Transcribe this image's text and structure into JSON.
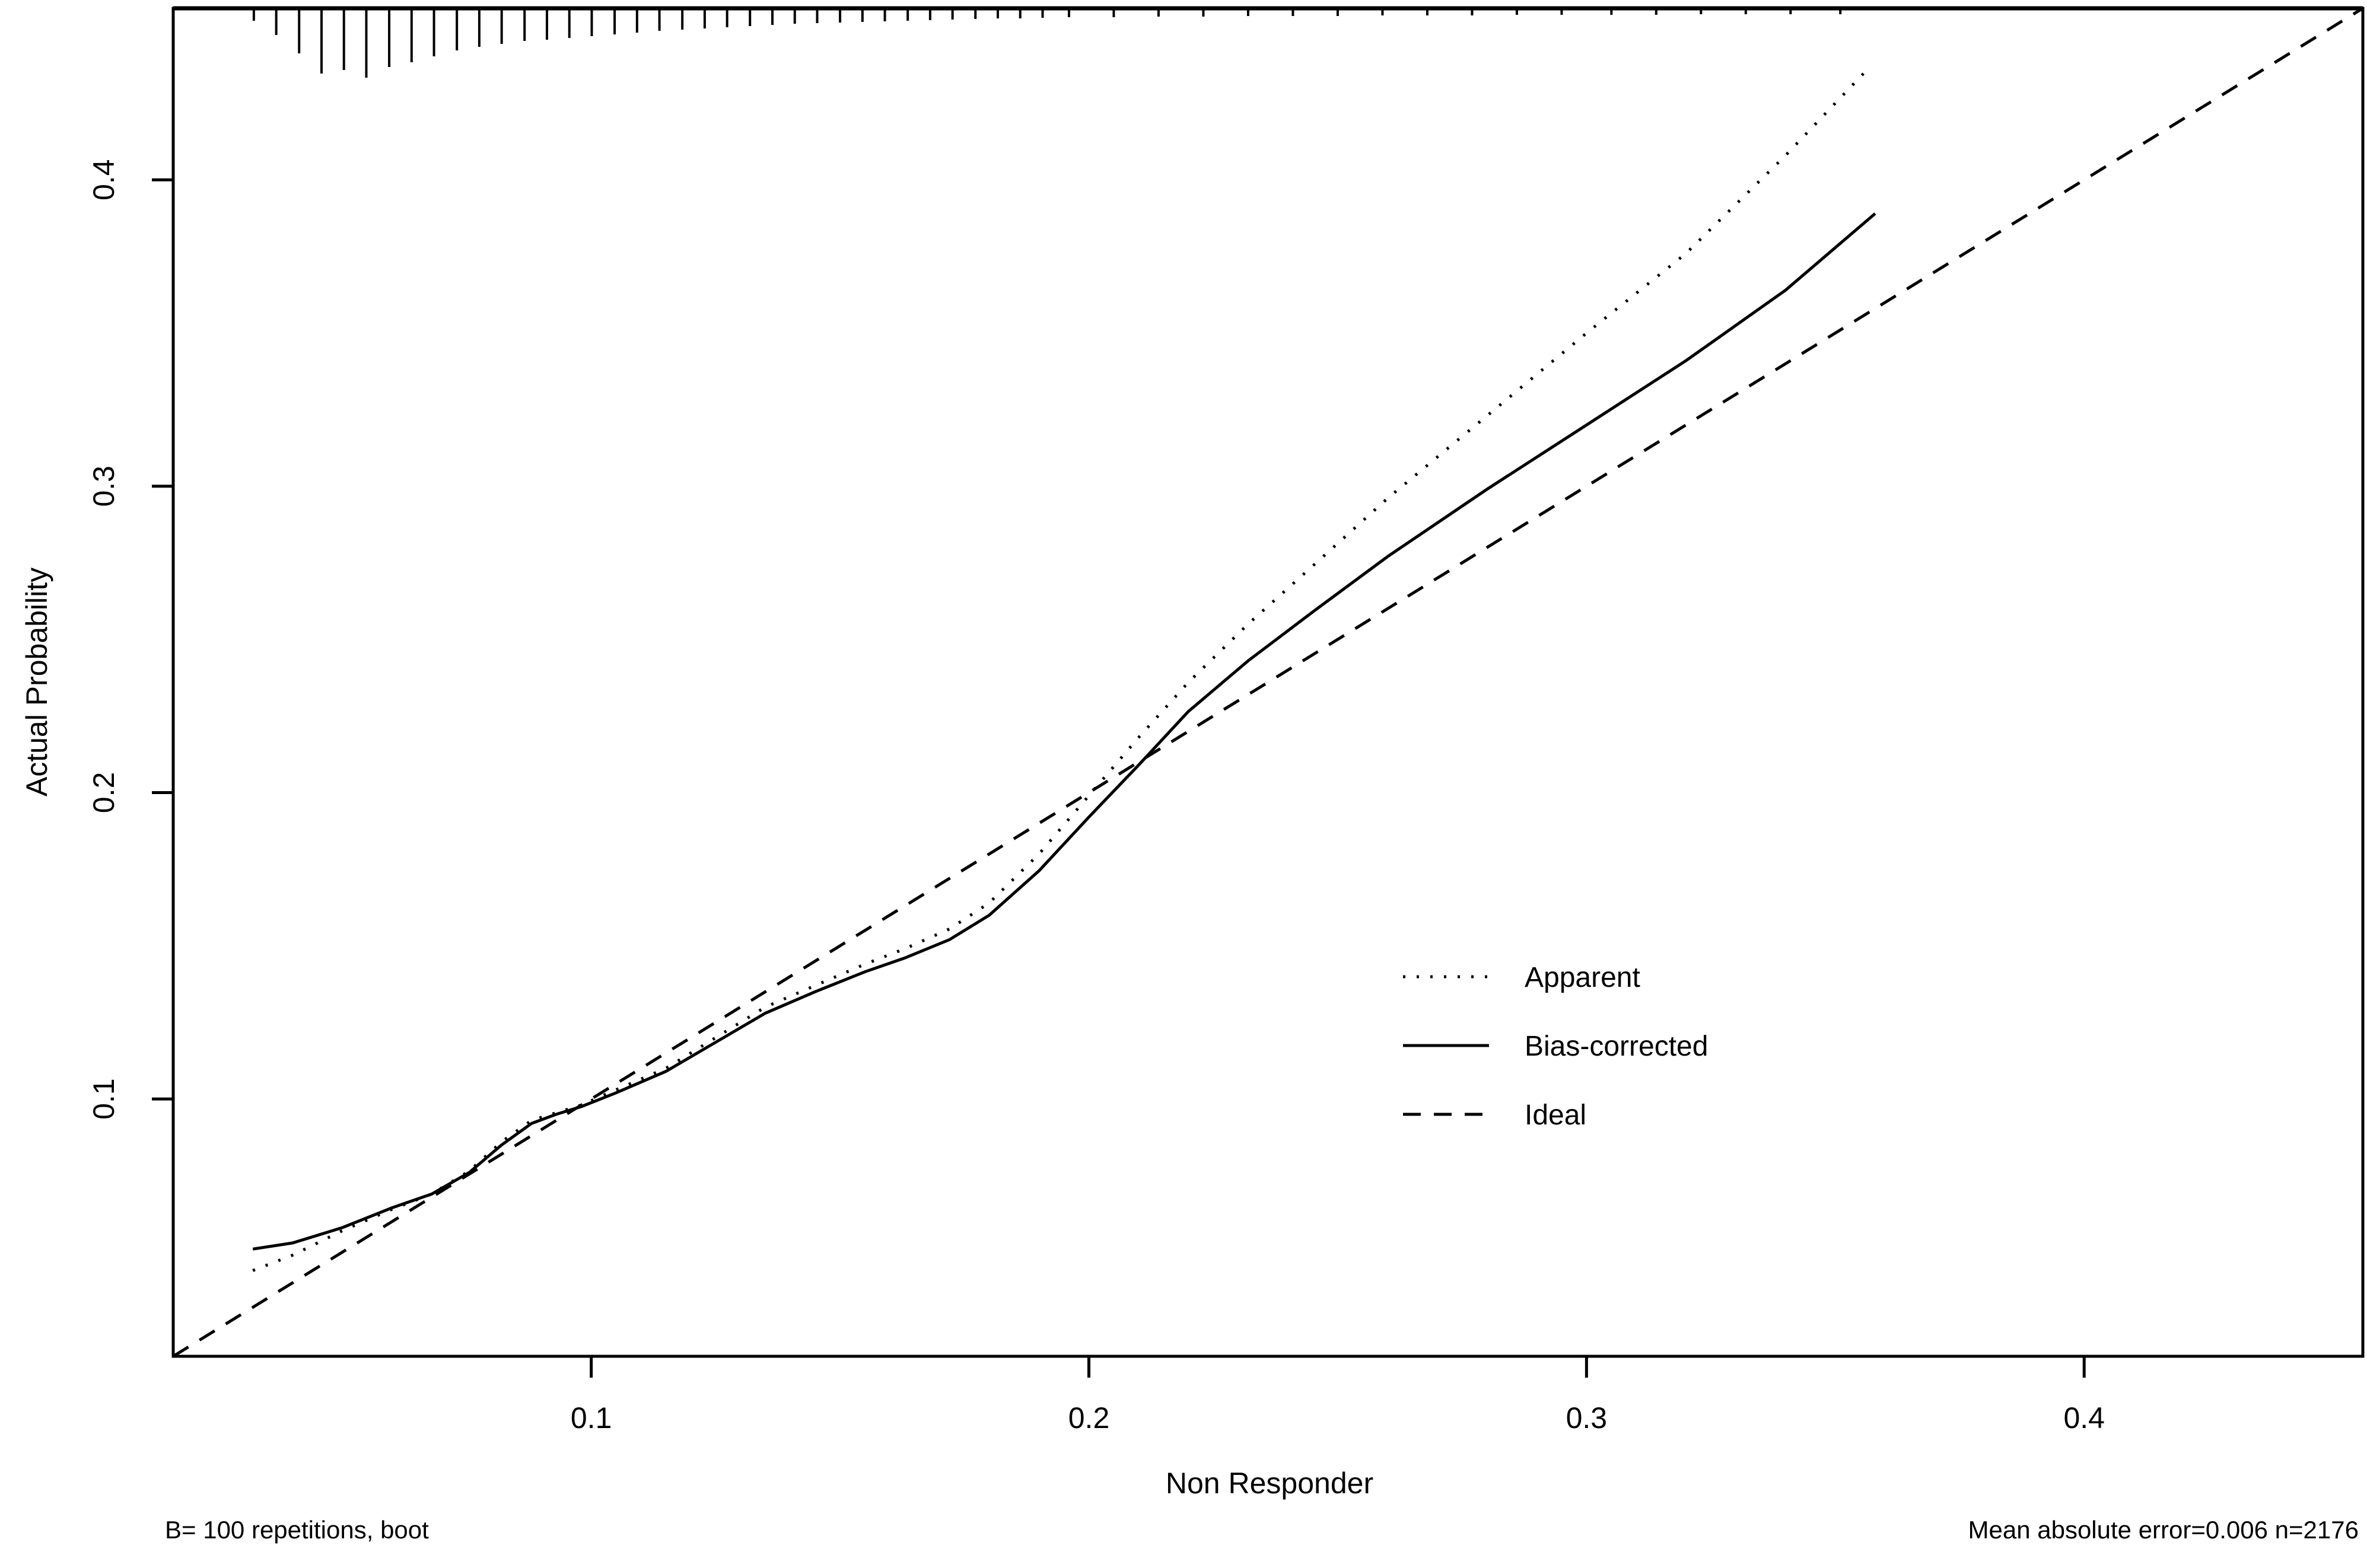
{
  "chart_data": {
    "type": "line",
    "title": "",
    "xlabel": "Non Responder",
    "ylabel": "Actual Probability",
    "xlim": [
      0.016,
      0.456
    ],
    "ylim": [
      0.016,
      0.456
    ],
    "grid": false,
    "x_ticks": [
      {
        "v": 0.1,
        "label": "0.1"
      },
      {
        "v": 0.2,
        "label": "0.2"
      },
      {
        "v": 0.3,
        "label": "0.3"
      },
      {
        "v": 0.4,
        "label": "0.4"
      }
    ],
    "y_ticks": [
      {
        "v": 0.1,
        "label": "0.1"
      },
      {
        "v": 0.2,
        "label": "0.2"
      },
      {
        "v": 0.3,
        "label": "0.3"
      },
      {
        "v": 0.4,
        "label": "0.4"
      }
    ],
    "line_color": "#000000",
    "series": [
      {
        "name": "Apparent",
        "line_style": "dotted",
        "points": [
          [
            0.032,
            0.044
          ],
          [
            0.04,
            0.049
          ],
          [
            0.05,
            0.057
          ],
          [
            0.06,
            0.064
          ],
          [
            0.068,
            0.069
          ],
          [
            0.0755,
            0.0765
          ],
          [
            0.082,
            0.086
          ],
          [
            0.088,
            0.093
          ],
          [
            0.093,
            0.0955
          ],
          [
            0.098,
            0.098
          ],
          [
            0.105,
            0.103
          ],
          [
            0.115,
            0.11
          ],
          [
            0.125,
            0.12
          ],
          [
            0.135,
            0.13
          ],
          [
            0.145,
            0.137
          ],
          [
            0.155,
            0.144
          ],
          [
            0.163,
            0.149
          ],
          [
            0.172,
            0.1555
          ],
          [
            0.18,
            0.164
          ],
          [
            0.19,
            0.18
          ],
          [
            0.2,
            0.199
          ],
          [
            0.21,
            0.218
          ],
          [
            0.22,
            0.236
          ],
          [
            0.232,
            0.255
          ],
          [
            0.245,
            0.274
          ],
          [
            0.26,
            0.296
          ],
          [
            0.28,
            0.323
          ],
          [
            0.3,
            0.35
          ],
          [
            0.32,
            0.376
          ],
          [
            0.34,
            0.408
          ],
          [
            0.357,
            0.437
          ]
        ]
      },
      {
        "name": "Bias-corrected",
        "line_style": "solid",
        "points": [
          [
            0.032,
            0.051
          ],
          [
            0.04,
            0.053
          ],
          [
            0.05,
            0.058
          ],
          [
            0.06,
            0.0645
          ],
          [
            0.068,
            0.069
          ],
          [
            0.0755,
            0.076
          ],
          [
            0.082,
            0.085
          ],
          [
            0.088,
            0.092
          ],
          [
            0.093,
            0.095
          ],
          [
            0.098,
            0.0975
          ],
          [
            0.105,
            0.102
          ],
          [
            0.115,
            0.109
          ],
          [
            0.125,
            0.1185
          ],
          [
            0.135,
            0.128
          ],
          [
            0.145,
            0.135
          ],
          [
            0.155,
            0.1415
          ],
          [
            0.163,
            0.146
          ],
          [
            0.172,
            0.152
          ],
          [
            0.18,
            0.16
          ],
          [
            0.19,
            0.1745
          ],
          [
            0.2,
            0.192
          ],
          [
            0.21,
            0.209
          ],
          [
            0.22,
            0.2265
          ],
          [
            0.232,
            0.243
          ],
          [
            0.245,
            0.259
          ],
          [
            0.26,
            0.277
          ],
          [
            0.28,
            0.299
          ],
          [
            0.3,
            0.32
          ],
          [
            0.32,
            0.341
          ],
          [
            0.34,
            0.364
          ],
          [
            0.358,
            0.389
          ]
        ]
      },
      {
        "name": "Ideal",
        "line_style": "dashed",
        "points": [
          [
            0.016,
            0.016
          ],
          [
            0.456,
            0.456
          ]
        ]
      }
    ],
    "legend": {
      "position": "right-center",
      "items": [
        "Apparent",
        "Bias-corrected",
        "Ideal"
      ]
    },
    "rug": {
      "comment_semantic": "spike histogram of predicted probabilities along top axis",
      "spikes": [
        [
          0.0322,
          18
        ],
        [
          0.0367,
          42
        ],
        [
          0.0413,
          73
        ],
        [
          0.0458,
          107
        ],
        [
          0.0503,
          101
        ],
        [
          0.0548,
          114
        ],
        [
          0.0594,
          96
        ],
        [
          0.0639,
          88
        ],
        [
          0.0684,
          78
        ],
        [
          0.073,
          68
        ],
        [
          0.0775,
          62
        ],
        [
          0.082,
          57
        ],
        [
          0.0866,
          52
        ],
        [
          0.0911,
          50
        ],
        [
          0.0956,
          47
        ],
        [
          0.1001,
          44
        ],
        [
          0.1047,
          41
        ],
        [
          0.1092,
          38
        ],
        [
          0.1137,
          35
        ],
        [
          0.1183,
          33
        ],
        [
          0.1228,
          31
        ],
        [
          0.1273,
          29
        ],
        [
          0.1319,
          27
        ],
        [
          0.1364,
          25
        ],
        [
          0.1409,
          23
        ],
        [
          0.1454,
          22
        ],
        [
          0.15,
          21
        ],
        [
          0.1545,
          20
        ],
        [
          0.159,
          19
        ],
        [
          0.1636,
          18
        ],
        [
          0.1681,
          17
        ],
        [
          0.1726,
          16
        ],
        [
          0.1772,
          15
        ],
        [
          0.1817,
          14
        ],
        [
          0.1862,
          14
        ],
        [
          0.1907,
          13
        ],
        [
          0.196,
          12
        ],
        [
          0.205,
          12
        ],
        [
          0.214,
          11
        ],
        [
          0.223,
          11
        ],
        [
          0.232,
          10
        ],
        [
          0.241,
          10
        ],
        [
          0.25,
          10
        ],
        [
          0.259,
          9
        ],
        [
          0.268,
          9
        ],
        [
          0.277,
          9
        ],
        [
          0.286,
          8
        ],
        [
          0.295,
          8
        ],
        [
          0.305,
          8
        ],
        [
          0.314,
          8
        ],
        [
          0.323,
          7
        ],
        [
          0.332,
          7
        ],
        [
          0.341,
          7
        ],
        [
          0.351,
          7
        ]
      ]
    },
    "footnote_left": "B= 100 repetitions, boot",
    "footnote_right": "Mean absolute error=0.006 n=2176"
  }
}
